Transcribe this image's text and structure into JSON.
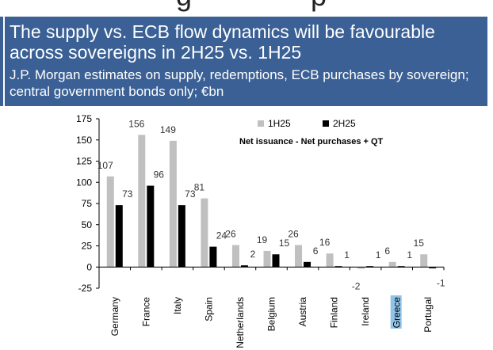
{
  "header": {
    "title": "The supply vs. ECB flow dynamics will be favourable across sovereigns in 2H25 vs. 1H25",
    "subtitle": "J.P. Morgan estimates on supply, redemptions, ECB purchases by sovereign; central government bonds only; €bn"
  },
  "colors": {
    "header_bg": "#3a6095",
    "series_1h25": "#c0c0c0",
    "series_2h25": "#000000",
    "highlight": "#8fc3e8"
  },
  "chart_data": {
    "type": "bar",
    "title": "",
    "annotation": "Net issuance - Net purchases + QT",
    "xlabel": "",
    "ylabel": "",
    "ylim": [
      -25,
      175
    ],
    "yticks": [
      -25,
      0,
      25,
      50,
      75,
      100,
      125,
      150,
      175
    ],
    "ytick_labels": [
      "-25",
      "0",
      "25",
      "50",
      "75",
      "100",
      "125",
      "150",
      "175"
    ],
    "categories": [
      "Germany",
      "France",
      "Italy",
      "Spain",
      "Netherlands",
      "Belgium",
      "Austria",
      "Finland",
      "Ireland",
      "Greece",
      "Portugal"
    ],
    "highlighted_category": "Greece",
    "series": [
      {
        "name": "1H25",
        "values": [
          107,
          156,
          149,
          81,
          26,
          19,
          26,
          16,
          -2,
          6,
          15
        ]
      },
      {
        "name": "2H25",
        "values": [
          73,
          96,
          73,
          24,
          2,
          15,
          6,
          1,
          1,
          1,
          -1
        ]
      }
    ],
    "legend_position": "top-right"
  }
}
